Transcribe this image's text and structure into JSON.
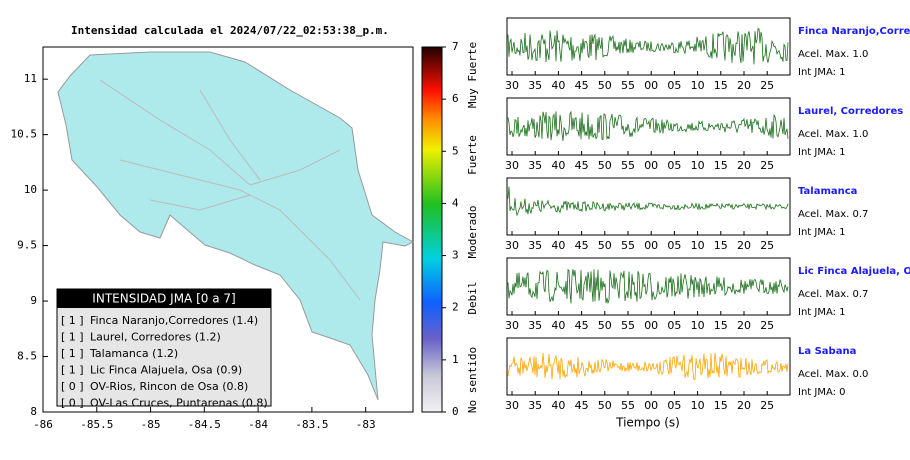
{
  "header": {
    "title": "Intensidad calculada el 2024/07/22_02:53:38_p.m."
  },
  "map": {
    "xlim": [
      -86,
      -82.56
    ],
    "ylim": [
      8,
      11.29
    ],
    "xticks": [
      -86,
      -85.5,
      -85,
      -84.5,
      -84,
      -83.5,
      -83
    ],
    "yticks": [
      8,
      8.5,
      9,
      9.5,
      10,
      10.5,
      11
    ]
  },
  "colorbar": {
    "lim": [
      0,
      7
    ],
    "ticks": [
      0,
      1,
      2,
      3,
      4,
      5,
      6,
      7
    ],
    "labels": [
      "No sentido",
      "Debil",
      "Moderado",
      "Fuerte",
      "Muy Fuerte"
    ]
  },
  "legend": {
    "title": "INTENSIDAD JMA [0 a 7]",
    "entries": [
      {
        "jma": "[ 1 ]",
        "label": "Finca Naranjo,Corredores (1.4)"
      },
      {
        "jma": "[ 1 ]",
        "label": "Laurel, Corredores (1.2)"
      },
      {
        "jma": "[ 1 ]",
        "label": "Talamanca (1.2)"
      },
      {
        "jma": "[ 1 ]",
        "label": "Lic Finca Alajuela, Osa (0.9)"
      },
      {
        "jma": "[ 0 ]",
        "label": "OV-Rios, Rincon de Osa (0.8)"
      },
      {
        "jma": "[ 0 ]",
        "label": "OV-Las Cruces, Puntarenas (0.8)"
      }
    ]
  },
  "records": {
    "time_ticks": [
      "30",
      "35",
      "40",
      "45",
      "50",
      "55",
      "00",
      "05",
      "10",
      "15",
      "20",
      "25"
    ],
    "xlabel": "Tiempo (s)",
    "stations": [
      {
        "name": "Finca Naranjo,Corredores",
        "accel": "Acel. Max. 1.0",
        "jma": "Int JMA: 1",
        "color": "#1a6e1a"
      },
      {
        "name": "Laurel, Corredores",
        "accel": "Acel. Max. 1.0",
        "jma": "Int JMA: 1",
        "color": "#1a6e1a"
      },
      {
        "name": "Talamanca",
        "accel": "Acel. Max. 0.7",
        "jma": "Int JMA: 1",
        "color": "#1a6e1a"
      },
      {
        "name": "Lic Finca Alajuela, Osa",
        "accel": "Acel. Max. 0.7",
        "jma": "Int JMA: 1",
        "color": "#1a6e1a"
      },
      {
        "name": "La Sabana",
        "accel": "Acel. Max. 0.0",
        "jma": "Int JMA: 0",
        "color": "#ffa500"
      }
    ]
  }
}
